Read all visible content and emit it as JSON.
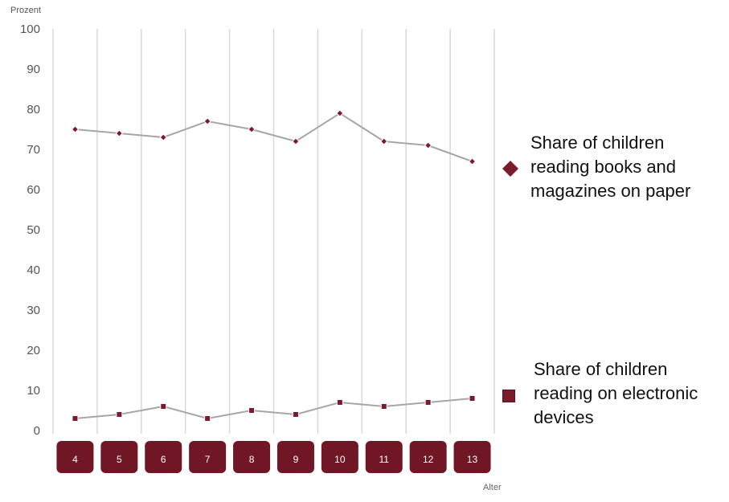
{
  "chart_data": {
    "type": "line",
    "ylabel": "Prozent",
    "xlabel": "Alter",
    "categories": [
      "4",
      "5",
      "6",
      "7",
      "8",
      "9",
      "10",
      "11",
      "12",
      "13"
    ],
    "ylim": [
      0,
      100
    ],
    "yticks": [
      "0",
      "10",
      "20",
      "30",
      "40",
      "50",
      "60",
      "70",
      "80",
      "90",
      "100"
    ],
    "grid": "vertical",
    "legend_position": "right",
    "series": [
      {
        "name": "Share of children reading books and magazines on paper",
        "marker": "diamond",
        "values": [
          75,
          74,
          73,
          77,
          75,
          72,
          79,
          72,
          71,
          67
        ]
      },
      {
        "name": "Share of children reading on electronic devices",
        "marker": "square",
        "values": [
          3,
          4,
          6,
          3,
          5,
          4,
          7,
          6,
          7,
          8
        ]
      }
    ],
    "colors": {
      "line": "#a6a6a6",
      "marker": "#7b1a2a",
      "category_box": "#701624",
      "grid": "#d9d9d9"
    }
  },
  "legend": {
    "paper_label": "Share of children\nreading books and\nmagazines on paper",
    "electronic_label": "Share of children\nreading on electronic\ndevices"
  }
}
